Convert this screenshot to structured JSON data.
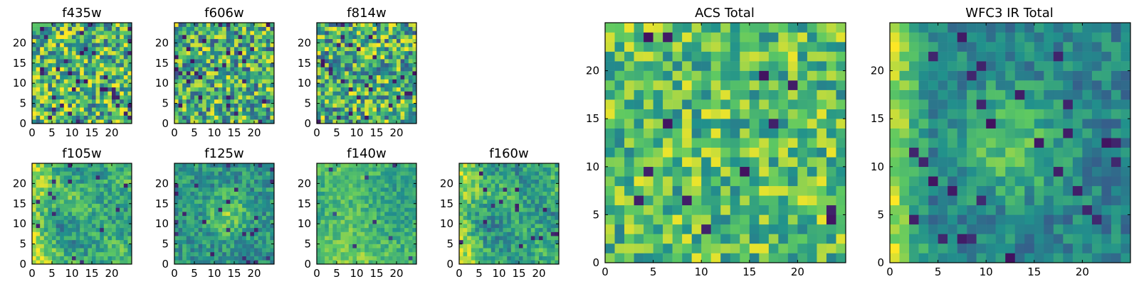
{
  "chart_data": [
    {
      "type": "heatmap",
      "title": "f435w",
      "xlabel": "",
      "ylabel": "",
      "xlim": [
        0,
        25
      ],
      "ylim": [
        0,
        25
      ],
      "x_ticks": [
        "0",
        "5",
        "10",
        "15",
        "20"
      ],
      "y_ticks": [
        "0",
        "5",
        "10",
        "15",
        "20"
      ],
      "grid": false,
      "colormap": "viridis",
      "size": [
        25,
        25
      ],
      "pattern": "noise-uniform",
      "mean_level": 0.66
    },
    {
      "type": "heatmap",
      "title": "f606w",
      "xlabel": "",
      "ylabel": "",
      "xlim": [
        0,
        25
      ],
      "ylim": [
        0,
        25
      ],
      "x_ticks": [
        "0",
        "5",
        "10",
        "15",
        "20"
      ],
      "y_ticks": [
        "0",
        "5",
        "10",
        "15",
        "20"
      ],
      "grid": false,
      "colormap": "viridis",
      "size": [
        25,
        25
      ],
      "pattern": "noise-uniform",
      "mean_level": 0.62
    },
    {
      "type": "heatmap",
      "title": "f814w",
      "xlabel": "",
      "ylabel": "",
      "xlim": [
        0,
        25
      ],
      "ylim": [
        0,
        25
      ],
      "x_ticks": [
        "0",
        "5",
        "10",
        "15",
        "20"
      ],
      "y_ticks": [
        "0",
        "5",
        "10",
        "15",
        "20"
      ],
      "grid": false,
      "colormap": "viridis",
      "size": [
        25,
        25
      ],
      "pattern": "noise-uniform",
      "mean_level": 0.63
    },
    {
      "type": "heatmap",
      "title": "f105w",
      "xlabel": "",
      "ylabel": "",
      "xlim": [
        0,
        25
      ],
      "ylim": [
        0,
        25
      ],
      "x_ticks": [
        "0",
        "5",
        "10",
        "15",
        "20"
      ],
      "y_ticks": [
        "0",
        "5",
        "10",
        "15",
        "20"
      ],
      "grid": false,
      "colormap": "viridis",
      "size": [
        25,
        25
      ],
      "pattern": "smooth-left-bright",
      "mean_level": 0.6
    },
    {
      "type": "heatmap",
      "title": "f125w",
      "xlabel": "",
      "ylabel": "",
      "xlim": [
        0,
        25
      ],
      "ylim": [
        0,
        25
      ],
      "x_ticks": [
        "0",
        "5",
        "10",
        "15",
        "20"
      ],
      "y_ticks": [
        "0",
        "5",
        "10",
        "15",
        "20"
      ],
      "grid": false,
      "colormap": "viridis",
      "size": [
        25,
        25
      ],
      "pattern": "smooth-center-bright",
      "mean_level": 0.52
    },
    {
      "type": "heatmap",
      "title": "f140w",
      "xlabel": "",
      "ylabel": "",
      "xlim": [
        0,
        25
      ],
      "ylim": [
        0,
        25
      ],
      "x_ticks": [
        "0",
        "5",
        "10",
        "15",
        "20"
      ],
      "y_ticks": [
        "0",
        "5",
        "10",
        "15",
        "20"
      ],
      "grid": false,
      "colormap": "viridis",
      "size": [
        25,
        25
      ],
      "pattern": "smooth-bright",
      "mean_level": 0.67
    },
    {
      "type": "heatmap",
      "title": "f160w",
      "xlabel": "",
      "ylabel": "",
      "xlim": [
        0,
        25
      ],
      "ylim": [
        0,
        25
      ],
      "x_ticks": [
        "0",
        "5",
        "10",
        "15",
        "20"
      ],
      "y_ticks": [
        "0",
        "5",
        "10",
        "15",
        "20"
      ],
      "grid": false,
      "colormap": "viridis",
      "size": [
        25,
        25
      ],
      "pattern": "smooth-left-bright",
      "mean_level": 0.58
    },
    {
      "type": "heatmap",
      "title": "ACS Total",
      "xlabel": "",
      "ylabel": "",
      "xlim": [
        0,
        25
      ],
      "ylim": [
        0,
        25
      ],
      "x_ticks": [
        "0",
        "5",
        "10",
        "15",
        "20"
      ],
      "y_ticks": [
        "0",
        "5",
        "10",
        "15",
        "20"
      ],
      "grid": false,
      "colormap": "viridis",
      "size": [
        25,
        25
      ],
      "pattern": "noise-bright",
      "mean_level": 0.7
    },
    {
      "type": "heatmap",
      "title": "WFC3 IR Total",
      "xlabel": "",
      "ylabel": "",
      "xlim": [
        0,
        25
      ],
      "ylim": [
        0,
        25
      ],
      "x_ticks": [
        "0",
        "5",
        "10",
        "15",
        "20"
      ],
      "y_ticks": [
        "0",
        "5",
        "10",
        "15",
        "20"
      ],
      "grid": false,
      "colormap": "viridis",
      "size": [
        25,
        25
      ],
      "pattern": "smooth-center-left-bright",
      "mean_level": 0.45
    }
  ],
  "colors": {
    "viridis": [
      "#440154",
      "#3b528b",
      "#21918c",
      "#5ec962",
      "#fde725"
    ],
    "axis": "#000000",
    "background": "#ffffff"
  }
}
